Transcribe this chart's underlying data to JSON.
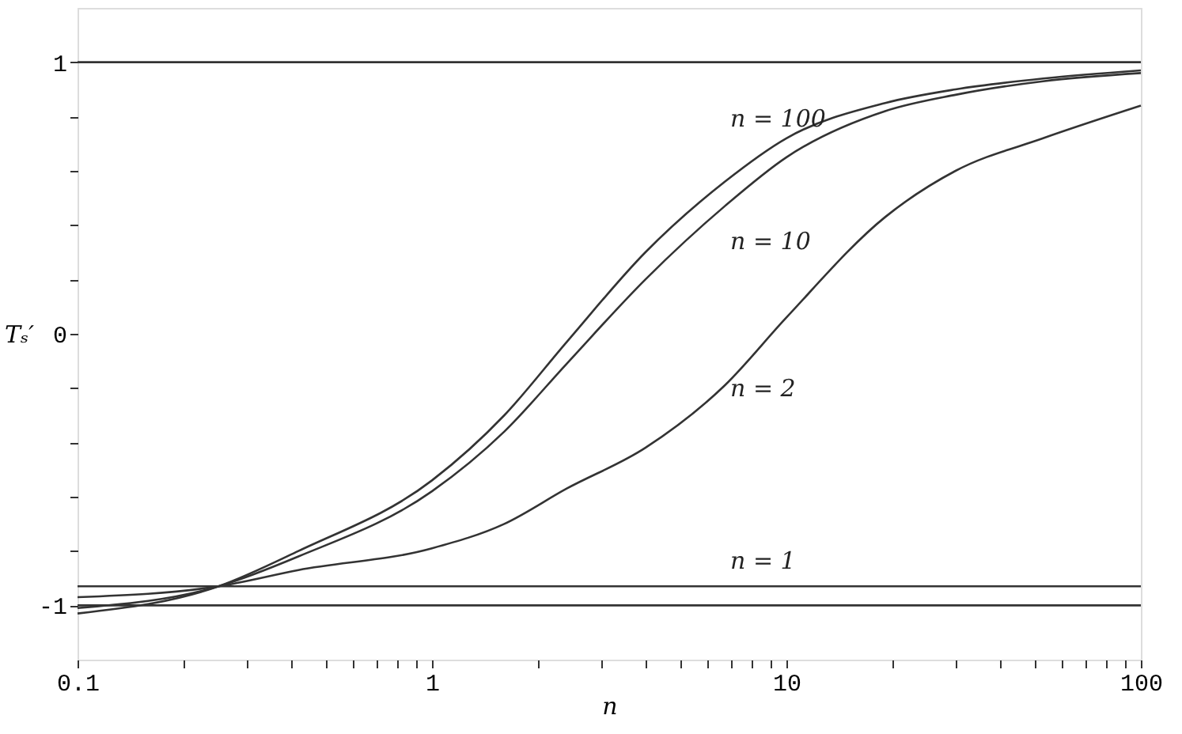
{
  "chart_data": {
    "type": "line",
    "xlabel": "n",
    "ylabel": "Tₛ′",
    "x": [
      0.1,
      0.25,
      0.42,
      1,
      1.6,
      2.4,
      4,
      6.7,
      10,
      19,
      30,
      53,
      100
    ],
    "series": [
      {
        "name": "n = 100",
        "color": "#333333",
        "values": [
          -1.03,
          -0.93,
          -0.8,
          -0.54,
          -0.3,
          -0.03,
          0.3,
          0.56,
          0.72,
          0.85,
          0.9,
          0.94,
          0.97
        ]
      },
      {
        "name": "n = 10",
        "color": "#333333",
        "values": [
          -1.01,
          -0.93,
          -0.82,
          -0.58,
          -0.36,
          -0.11,
          0.2,
          0.47,
          0.65,
          0.82,
          0.88,
          0.93,
          0.96
        ]
      },
      {
        "name": "n = 2",
        "color": "#333333",
        "values": [
          -0.97,
          -0.93,
          -0.87,
          -0.79,
          -0.7,
          -0.57,
          -0.42,
          -0.19,
          0.06,
          0.43,
          0.6,
          0.72,
          0.84
        ]
      },
      {
        "name": "n = 1",
        "color": "#333333",
        "x": [
          0.1,
          100
        ],
        "values": [
          -0.93,
          -0.93
        ]
      }
    ],
    "ref_lines": [
      {
        "axis": "y",
        "value": 1,
        "color": "#333333"
      },
      {
        "axis": "y",
        "value": -1,
        "color": "#333333"
      }
    ],
    "log": "x",
    "grid": false,
    "legend": false,
    "marker": "none",
    "line_style": "solid",
    "xlim": [
      0.1,
      100
    ],
    "ylim": [
      -1.2,
      1.2
    ],
    "xticks": [
      0.1,
      {
        "value": 0.2,
        "label": null
      },
      {
        "value": 0.3,
        "label": null
      },
      {
        "value": 0.4,
        "label": null
      },
      {
        "value": 0.5,
        "label": null
      },
      {
        "value": 0.6,
        "label": null
      },
      {
        "value": 0.7,
        "label": null
      },
      {
        "value": 0.8,
        "label": null
      },
      {
        "value": 0.9,
        "label": null
      },
      1,
      {
        "value": 2,
        "label": null
      },
      {
        "value": 3,
        "label": null
      },
      {
        "value": 4,
        "label": null
      },
      {
        "value": 5,
        "label": null
      },
      {
        "value": 6,
        "label": null
      },
      {
        "value": 7,
        "label": null
      },
      {
        "value": 8,
        "label": null
      },
      {
        "value": 9,
        "label": null
      },
      10,
      {
        "value": 20,
        "label": null
      },
      {
        "value": 30,
        "label": null
      },
      {
        "value": 40,
        "label": null
      },
      {
        "value": 50,
        "label": null
      },
      {
        "value": 60,
        "label": null
      },
      {
        "value": 70,
        "label": null
      },
      {
        "value": 80,
        "label": null
      },
      {
        "value": 90,
        "label": null
      },
      100
    ],
    "yticks": [
      -1,
      {
        "value": -0.8,
        "label": null
      },
      {
        "value": -0.6,
        "label": null
      },
      {
        "value": -0.4,
        "label": null
      },
      {
        "value": -0.2,
        "label": null
      },
      0,
      {
        "value": 0.2,
        "label": null
      },
      {
        "value": 0.4,
        "label": null
      },
      {
        "value": 0.6,
        "label": null
      },
      {
        "value": 0.8,
        "label": null
      },
      1
    ]
  }
}
